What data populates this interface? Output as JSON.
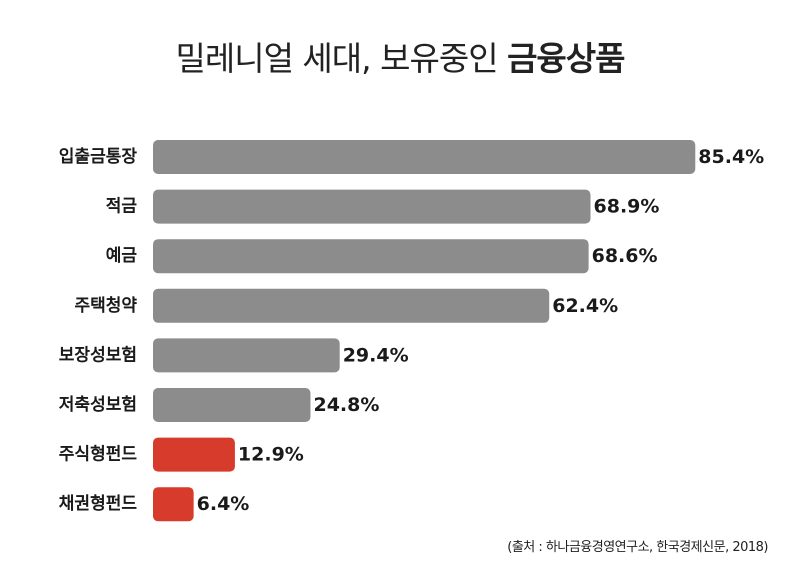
{
  "chart_data": {
    "type": "bar",
    "orientation": "horizontal",
    "title": "밀레니얼 세대, 보유중인",
    "title_emphasis": "금융상품",
    "categories": [
      "입출금통장",
      "적금",
      "예금",
      "주택청약",
      "보장성보험",
      "저축성보험",
      "주식형펀드",
      "채권형펀드"
    ],
    "values": [
      85.4,
      68.9,
      68.6,
      62.4,
      29.4,
      24.8,
      12.9,
      6.4
    ],
    "value_labels": [
      "85.4%",
      "68.9%",
      "68.6%",
      "62.4%",
      "29.4%",
      "24.8%",
      "12.9%",
      "6.4%"
    ],
    "bar_colors": [
      "#8c8c8c",
      "#8c8c8c",
      "#8c8c8c",
      "#8c8c8c",
      "#8c8c8c",
      "#8c8c8c",
      "#d63b2b",
      "#d63b2b"
    ],
    "xlim": [
      0,
      100
    ],
    "grid": false,
    "source": "(출처 : 하나금융경영연구소, 한국경제신문, 2018)"
  }
}
